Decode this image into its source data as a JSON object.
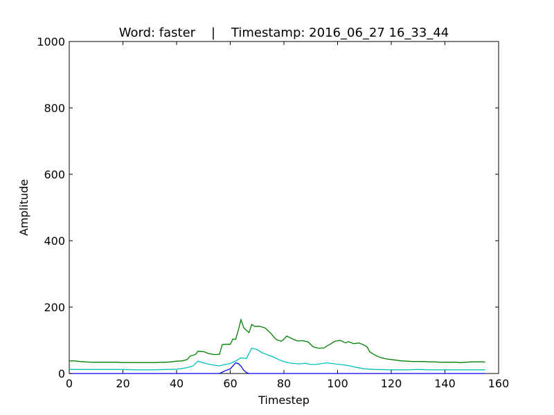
{
  "chart_data": {
    "type": "line",
    "title": "Word: faster    |    Timestamp: 2016_06_27 16_33_44",
    "xlabel": "Timestep",
    "ylabel": "Amplitude",
    "xlim": [
      0,
      160
    ],
    "ylim": [
      0,
      1000
    ],
    "xticks": [
      "0",
      "20",
      "40",
      "60",
      "80",
      "100",
      "120",
      "140",
      "160"
    ],
    "yticks": [
      "0",
      "200",
      "400",
      "600",
      "800",
      "1000"
    ],
    "grid": false,
    "legend": false,
    "series": [
      {
        "color": "#008000",
        "points": [
          [
            0,
            38
          ],
          [
            2,
            38
          ],
          [
            4,
            36
          ],
          [
            6,
            35
          ],
          [
            8,
            34
          ],
          [
            10,
            34
          ],
          [
            12,
            34
          ],
          [
            14,
            34
          ],
          [
            16,
            34
          ],
          [
            18,
            34
          ],
          [
            20,
            33
          ],
          [
            22,
            33
          ],
          [
            24,
            33
          ],
          [
            26,
            33
          ],
          [
            28,
            33
          ],
          [
            30,
            33
          ],
          [
            32,
            33
          ],
          [
            34,
            34
          ],
          [
            36,
            34
          ],
          [
            38,
            35
          ],
          [
            40,
            37
          ],
          [
            42,
            38
          ],
          [
            44,
            42
          ],
          [
            45,
            52
          ],
          [
            47,
            57
          ],
          [
            48,
            67
          ],
          [
            50,
            66
          ],
          [
            52,
            60
          ],
          [
            54,
            57
          ],
          [
            56,
            58
          ],
          [
            57,
            87
          ],
          [
            58,
            88
          ],
          [
            60,
            88
          ],
          [
            61,
            104
          ],
          [
            62,
            103
          ],
          [
            63,
            130
          ],
          [
            64,
            162
          ],
          [
            65,
            138
          ],
          [
            67,
            123
          ],
          [
            68,
            148
          ],
          [
            69,
            142
          ],
          [
            71,
            142
          ],
          [
            73,
            137
          ],
          [
            75,
            122
          ],
          [
            77,
            103
          ],
          [
            79,
            97
          ],
          [
            80,
            103
          ],
          [
            81,
            113
          ],
          [
            83,
            105
          ],
          [
            85,
            98
          ],
          [
            87,
            99
          ],
          [
            89,
            95
          ],
          [
            91,
            80
          ],
          [
            93,
            76
          ],
          [
            95,
            77
          ],
          [
            96,
            83
          ],
          [
            97,
            87
          ],
          [
            99,
            97
          ],
          [
            101,
            100
          ],
          [
            103,
            92
          ],
          [
            104,
            96
          ],
          [
            106,
            90
          ],
          [
            108,
            92
          ],
          [
            110,
            85
          ],
          [
            111,
            80
          ],
          [
            112,
            65
          ],
          [
            114,
            55
          ],
          [
            116,
            48
          ],
          [
            118,
            44
          ],
          [
            120,
            42
          ],
          [
            122,
            40
          ],
          [
            124,
            38
          ],
          [
            126,
            37
          ],
          [
            128,
            36
          ],
          [
            130,
            36
          ],
          [
            132,
            36
          ],
          [
            134,
            35
          ],
          [
            136,
            35
          ],
          [
            138,
            34
          ],
          [
            140,
            34
          ],
          [
            142,
            34
          ],
          [
            144,
            34
          ],
          [
            146,
            33
          ],
          [
            148,
            34
          ],
          [
            150,
            35
          ],
          [
            152,
            35
          ],
          [
            154,
            35
          ],
          [
            155,
            34
          ]
        ]
      },
      {
        "color": "#00bfbf",
        "points": [
          [
            0,
            12
          ],
          [
            4,
            12
          ],
          [
            8,
            12
          ],
          [
            12,
            12
          ],
          [
            16,
            12
          ],
          [
            20,
            12
          ],
          [
            24,
            11
          ],
          [
            28,
            11
          ],
          [
            32,
            11
          ],
          [
            36,
            12
          ],
          [
            40,
            13
          ],
          [
            42,
            15
          ],
          [
            44,
            18
          ],
          [
            46,
            22
          ],
          [
            47,
            30
          ],
          [
            48,
            37
          ],
          [
            50,
            32
          ],
          [
            52,
            28
          ],
          [
            54,
            25
          ],
          [
            56,
            23
          ],
          [
            58,
            27
          ],
          [
            60,
            30
          ],
          [
            62,
            38
          ],
          [
            64,
            47
          ],
          [
            66,
            45
          ],
          [
            68,
            76
          ],
          [
            70,
            72
          ],
          [
            72,
            62
          ],
          [
            74,
            56
          ],
          [
            76,
            50
          ],
          [
            78,
            42
          ],
          [
            80,
            36
          ],
          [
            82,
            32
          ],
          [
            84,
            30
          ],
          [
            86,
            29
          ],
          [
            88,
            31
          ],
          [
            90,
            27
          ],
          [
            92,
            27
          ],
          [
            94,
            30
          ],
          [
            96,
            32
          ],
          [
            98,
            30
          ],
          [
            100,
            28
          ],
          [
            102,
            26
          ],
          [
            104,
            24
          ],
          [
            106,
            20
          ],
          [
            108,
            17
          ],
          [
            110,
            14
          ],
          [
            114,
            12
          ],
          [
            120,
            11
          ],
          [
            126,
            11
          ],
          [
            130,
            12
          ],
          [
            134,
            11
          ],
          [
            138,
            11
          ],
          [
            142,
            11
          ],
          [
            146,
            11
          ],
          [
            150,
            11
          ],
          [
            155,
            11
          ]
        ]
      },
      {
        "color": "#0000ff",
        "points": [
          [
            0,
            0
          ],
          [
            55,
            0
          ],
          [
            56,
            0
          ],
          [
            58,
            8
          ],
          [
            60,
            14
          ],
          [
            62,
            32
          ],
          [
            63,
            30
          ],
          [
            64,
            22
          ],
          [
            65,
            10
          ],
          [
            66,
            3
          ],
          [
            67,
            0
          ],
          [
            75,
            0
          ],
          [
            100,
            0
          ],
          [
            130,
            0
          ],
          [
            155,
            0
          ]
        ]
      }
    ]
  }
}
